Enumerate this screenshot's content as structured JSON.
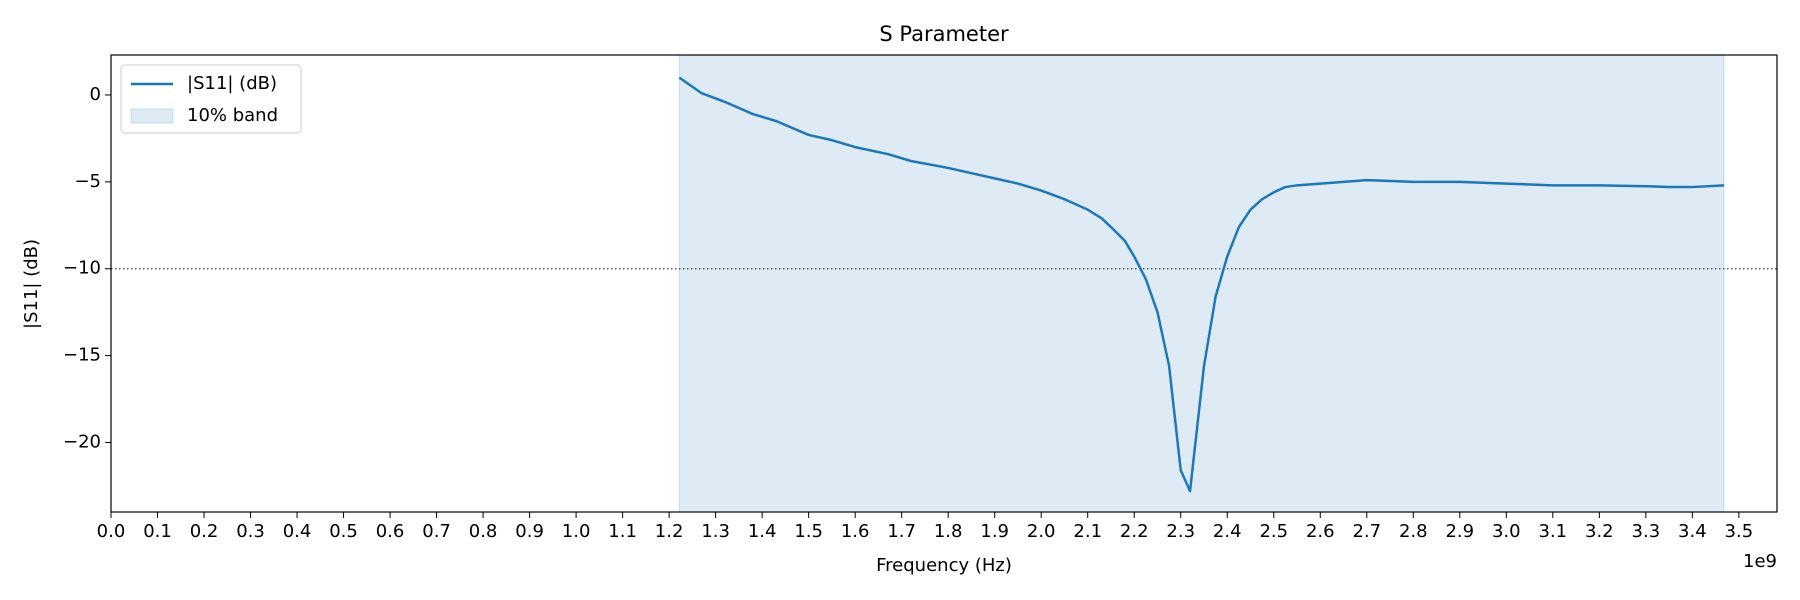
{
  "chart_data": {
    "type": "line",
    "title": "S Parameter",
    "xlabel": "Frequency (Hz)",
    "ylabel": "|S11| (dB)",
    "x_offset_label": "1e9",
    "x": [
      1.222,
      1.27,
      1.32,
      1.38,
      1.43,
      1.5,
      1.55,
      1.6,
      1.67,
      1.72,
      1.8,
      1.85,
      1.9,
      1.95,
      2.0,
      2.05,
      2.1,
      2.13,
      2.15,
      2.18,
      2.2,
      2.225,
      2.25,
      2.275,
      2.3,
      2.32,
      2.35,
      2.375,
      2.4,
      2.425,
      2.45,
      2.475,
      2.5,
      2.525,
      2.55,
      2.6,
      2.65,
      2.7,
      2.8,
      2.9,
      3.0,
      3.1,
      3.2,
      3.3,
      3.35,
      3.4,
      3.468
    ],
    "series": [
      {
        "name": "|S11| (dB)",
        "color": "#1f77b4",
        "values": [
          1.0,
          0.1,
          -0.4,
          -1.1,
          -1.5,
          -2.3,
          -2.6,
          -3.0,
          -3.4,
          -3.8,
          -4.2,
          -4.5,
          -4.8,
          -5.1,
          -5.5,
          -6.0,
          -6.6,
          -7.1,
          -7.6,
          -8.4,
          -9.3,
          -10.6,
          -12.5,
          -15.6,
          -21.6,
          -22.8,
          -15.6,
          -11.6,
          -9.3,
          -7.6,
          -6.6,
          -6.0,
          -5.6,
          -5.3,
          -5.2,
          -5.1,
          -5.0,
          -4.9,
          -5.0,
          -5.0,
          -5.1,
          -5.2,
          -5.2,
          -5.25,
          -5.3,
          -5.3,
          -5.2
        ]
      }
    ],
    "band": {
      "name": "10% band",
      "range": [
        1.222,
        3.468
      ],
      "color": "#1f77b4"
    },
    "threshold": -10,
    "xlim": [
      0,
      3.582
    ],
    "ylim": [
      -24.0,
      2.3
    ],
    "xticks": [
      {
        "value": 0,
        "label": "0.0"
      },
      0.1,
      0.2,
      0.3,
      0.4,
      0.5,
      0.6,
      0.7,
      0.8,
      0.9,
      {
        "value": 1,
        "label": "1.0"
      },
      1.1,
      1.2,
      1.3,
      1.4,
      1.5,
      1.6,
      1.7,
      1.8,
      1.9,
      {
        "value": 2,
        "label": "2.0"
      },
      2.1,
      2.2,
      2.3,
      2.4,
      2.5,
      2.6,
      2.7,
      2.8,
      2.9,
      {
        "value": 3,
        "label": "3.0"
      },
      3.1,
      3.2,
      3.3,
      3.4,
      3.5
    ],
    "yticks": [
      {
        "value": -20,
        "label": "−20"
      },
      {
        "value": -15,
        "label": "−15"
      },
      {
        "value": -10,
        "label": "−10"
      },
      {
        "value": -5,
        "label": "−5"
      },
      0
    ],
    "legend": "upper left",
    "grid": false
  }
}
